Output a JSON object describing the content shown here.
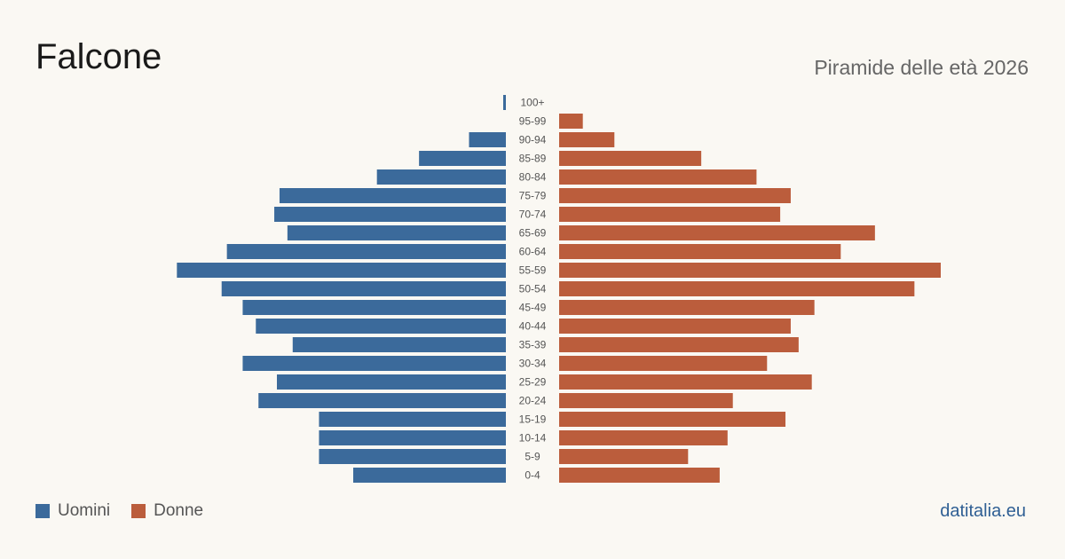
{
  "title": "Falcone",
  "subtitle": "Piramide delle età 2026",
  "brand": "datitalia.eu",
  "colors": {
    "men": "#3b6a9b",
    "women": "#bb5d3c",
    "label": "#555555"
  },
  "legend": [
    {
      "label": "Uomini",
      "color": "#3b6a9b"
    },
    {
      "label": "Donne",
      "color": "#bb5d3c"
    }
  ],
  "chart_data": {
    "type": "bar",
    "orientation": "horizontal-pyramid",
    "categories": [
      "100+",
      "95-99",
      "90-94",
      "85-89",
      "80-84",
      "75-79",
      "70-74",
      "65-69",
      "60-64",
      "55-59",
      "50-54",
      "45-49",
      "40-44",
      "35-39",
      "30-34",
      "25-29",
      "20-24",
      "15-19",
      "10-14",
      "5-9",
      "0-4"
    ],
    "series": [
      {
        "name": "Uomini",
        "values": [
          1,
          0,
          14,
          33,
          49,
          86,
          88,
          83,
          106,
          125,
          108,
          100,
          95,
          81,
          100,
          87,
          94,
          71,
          71,
          71,
          58
        ]
      },
      {
        "name": "Donne",
        "values": [
          0,
          9,
          21,
          54,
          75,
          88,
          84,
          120,
          107,
          145,
          135,
          97,
          88,
          91,
          79,
          96,
          66,
          86,
          64,
          49,
          61
        ]
      }
    ],
    "xlim": [
      0,
      145
    ]
  }
}
